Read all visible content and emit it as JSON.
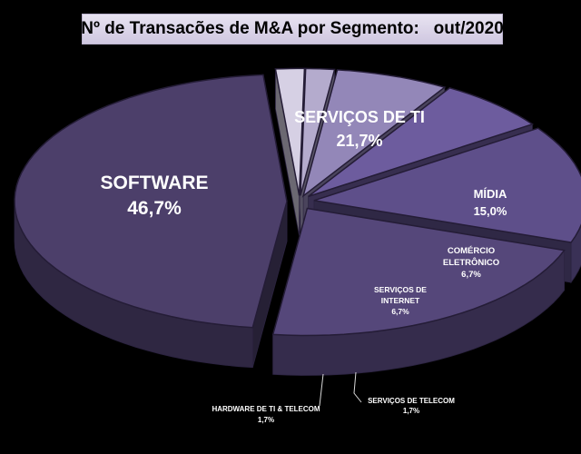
{
  "chart_data": {
    "type": "pie",
    "title": "Nº de Transacões de M&A por Segmento:   out/2020",
    "slices": [
      {
        "name": "SOFTWARE",
        "value": 46.7,
        "value_label": "46,7%",
        "color": "#4c3f6a"
      },
      {
        "name": "SERVIÇOS DE TI",
        "value": 21.7,
        "value_label": "21,7%",
        "color": "#55477a"
      },
      {
        "name": "MÍDIA",
        "value": 15.0,
        "value_label": "15,0%",
        "color": "#5e4f8a"
      },
      {
        "name": "COMÉRCIO ELETRÔNICO",
        "value": 6.7,
        "value_label": "6,7%",
        "color": "#6d5c9e"
      },
      {
        "name": "SERVIÇOS DE INTERNET",
        "value": 6.7,
        "value_label": "6,7%",
        "color": "#9387b8"
      },
      {
        "name": "SERVIÇOS DE TELECOM",
        "value": 1.7,
        "value_label": "1,7%",
        "color": "#b4abcd"
      },
      {
        "name": "HARDWARE  DE TI & TELECOM",
        "value": 1.7,
        "value_label": "1,7%",
        "color": "#d6d0e4"
      }
    ],
    "labels": {
      "software": [
        "SOFTWARE",
        "46,7%"
      ],
      "servicos_ti": [
        "SERVIÇOS DE TI",
        "21,7%"
      ],
      "midia": [
        "MÍDIA",
        "15,0%"
      ],
      "comercio": [
        "COMÉRCIO",
        "ELETRÔNICO",
        "6,7%"
      ],
      "internet": [
        "SERVIÇOS DE",
        "INTERNET",
        "6,7%"
      ],
      "telecom": [
        "SERVIÇOS DE TELECOM",
        "1,7%"
      ],
      "hardware": [
        "HARDWARE  DE TI & TELECOM",
        "1,7%"
      ]
    }
  }
}
